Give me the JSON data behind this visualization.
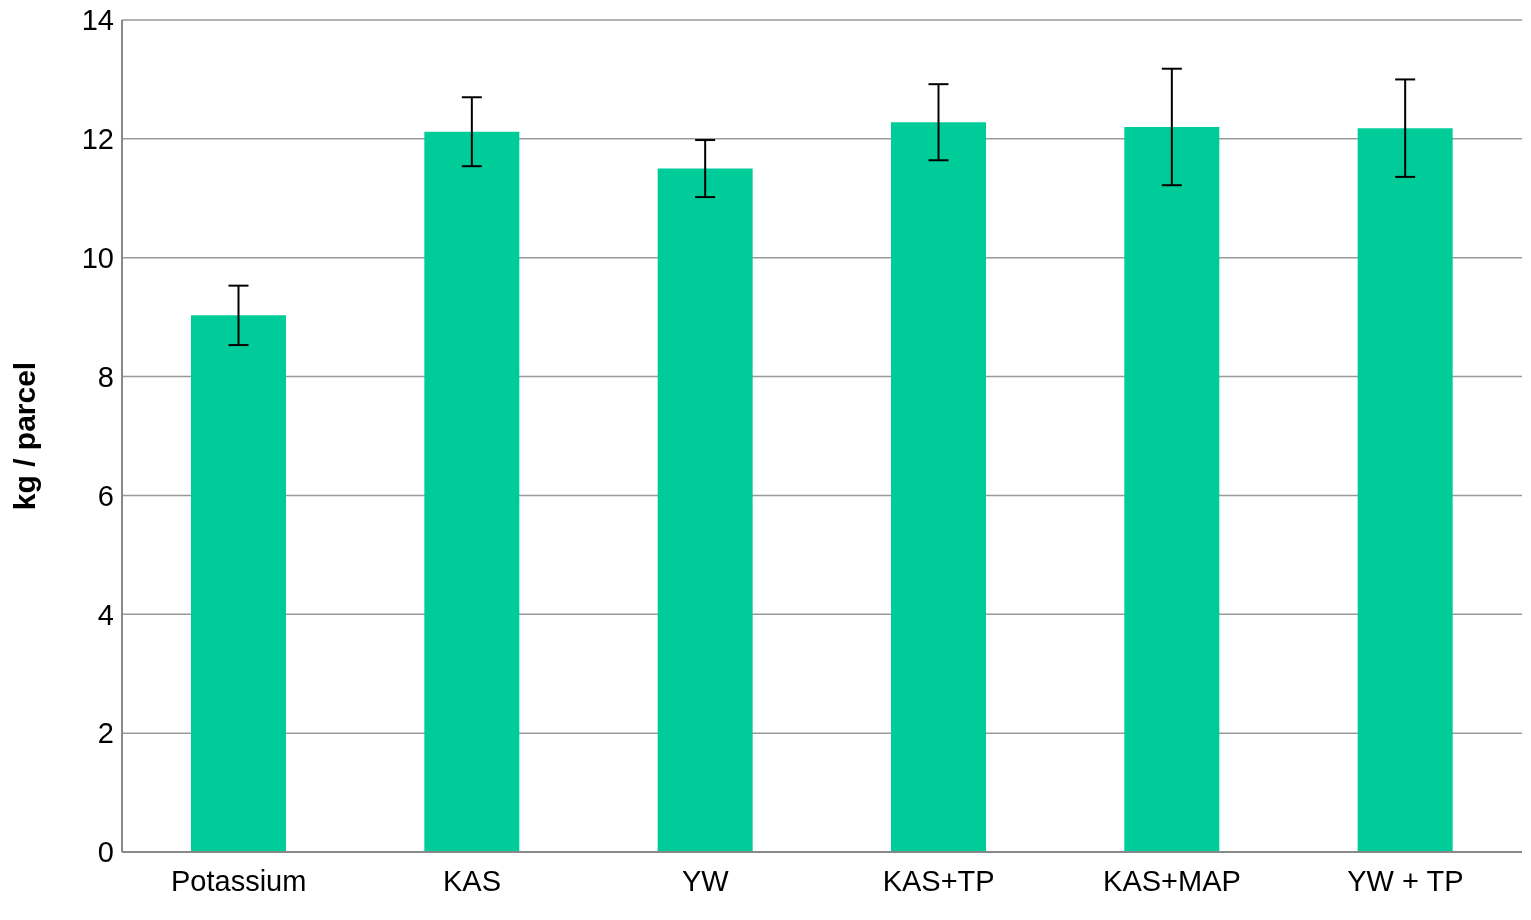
{
  "chart_data": {
    "type": "bar",
    "ylabel": "kg / parcel",
    "categories": [
      "Potassium",
      "KAS",
      "YW",
      "KAS+TP",
      "KAS+MAP",
      "YW + TP"
    ],
    "values": [
      9.03,
      12.12,
      11.5,
      12.28,
      12.2,
      12.18
    ],
    "errors": [
      0.5,
      0.58,
      0.48,
      0.64,
      0.98,
      0.82
    ],
    "color": "#00cc99",
    "ylim": [
      0,
      14
    ],
    "yticks": [
      0,
      2,
      4,
      6,
      8,
      10,
      12,
      14
    ],
    "grid": "y"
  }
}
